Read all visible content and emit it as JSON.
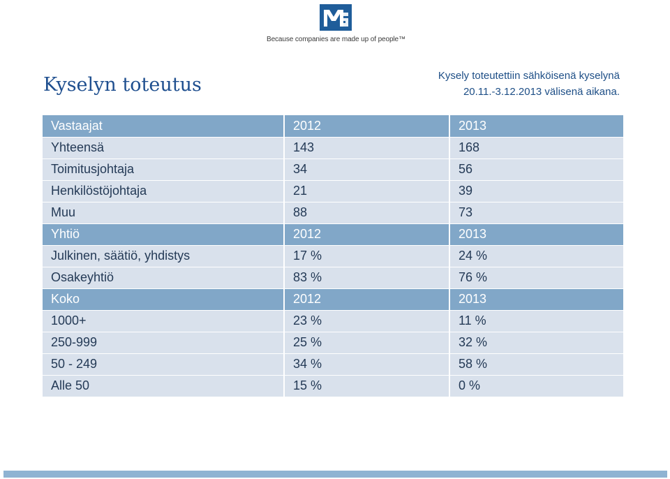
{
  "branding": {
    "tagline": "Because companies are made up of people™",
    "logo_icon": "mps-logo-icon",
    "brand_color": "#1f5d9a"
  },
  "slide": {
    "title": "Kyselyn toteutus",
    "note_line1": "Kysely toteutettiin sähköisenä kyselynä",
    "note_line2": "20.11.-3.12.2013 välisenä aikana."
  },
  "table": {
    "sections": [
      {
        "header": [
          "Vastaajat",
          "2012",
          "2013"
        ],
        "rows": [
          [
            "Yhteensä",
            "143",
            "168"
          ],
          [
            "Toimitusjohtaja",
            "34",
            "56"
          ],
          [
            "Henkilöstöjohtaja",
            "21",
            "39"
          ],
          [
            "Muu",
            "88",
            "73"
          ]
        ]
      },
      {
        "header": [
          "Yhtiö",
          "2012",
          "2013"
        ],
        "rows": [
          [
            "Julkinen, säätiö, yhdistys",
            "17 %",
            "24 %"
          ],
          [
            "Osakeyhtiö",
            "83 %",
            "76 %"
          ]
        ]
      },
      {
        "header": [
          "Koko",
          "2012",
          "2013"
        ],
        "rows": [
          [
            "1000+",
            "23 %",
            "11 %"
          ],
          [
            "250-999",
            "25 %",
            "32 %"
          ],
          [
            "50 - 249",
            "34 %",
            "58 %"
          ],
          [
            "Alle 50",
            "15 %",
            "0 %"
          ]
        ]
      }
    ]
  },
  "colors": {
    "header_bg": "#81a7c8",
    "row_bg": "#d9e1ec",
    "title": "#1f4f8f"
  }
}
